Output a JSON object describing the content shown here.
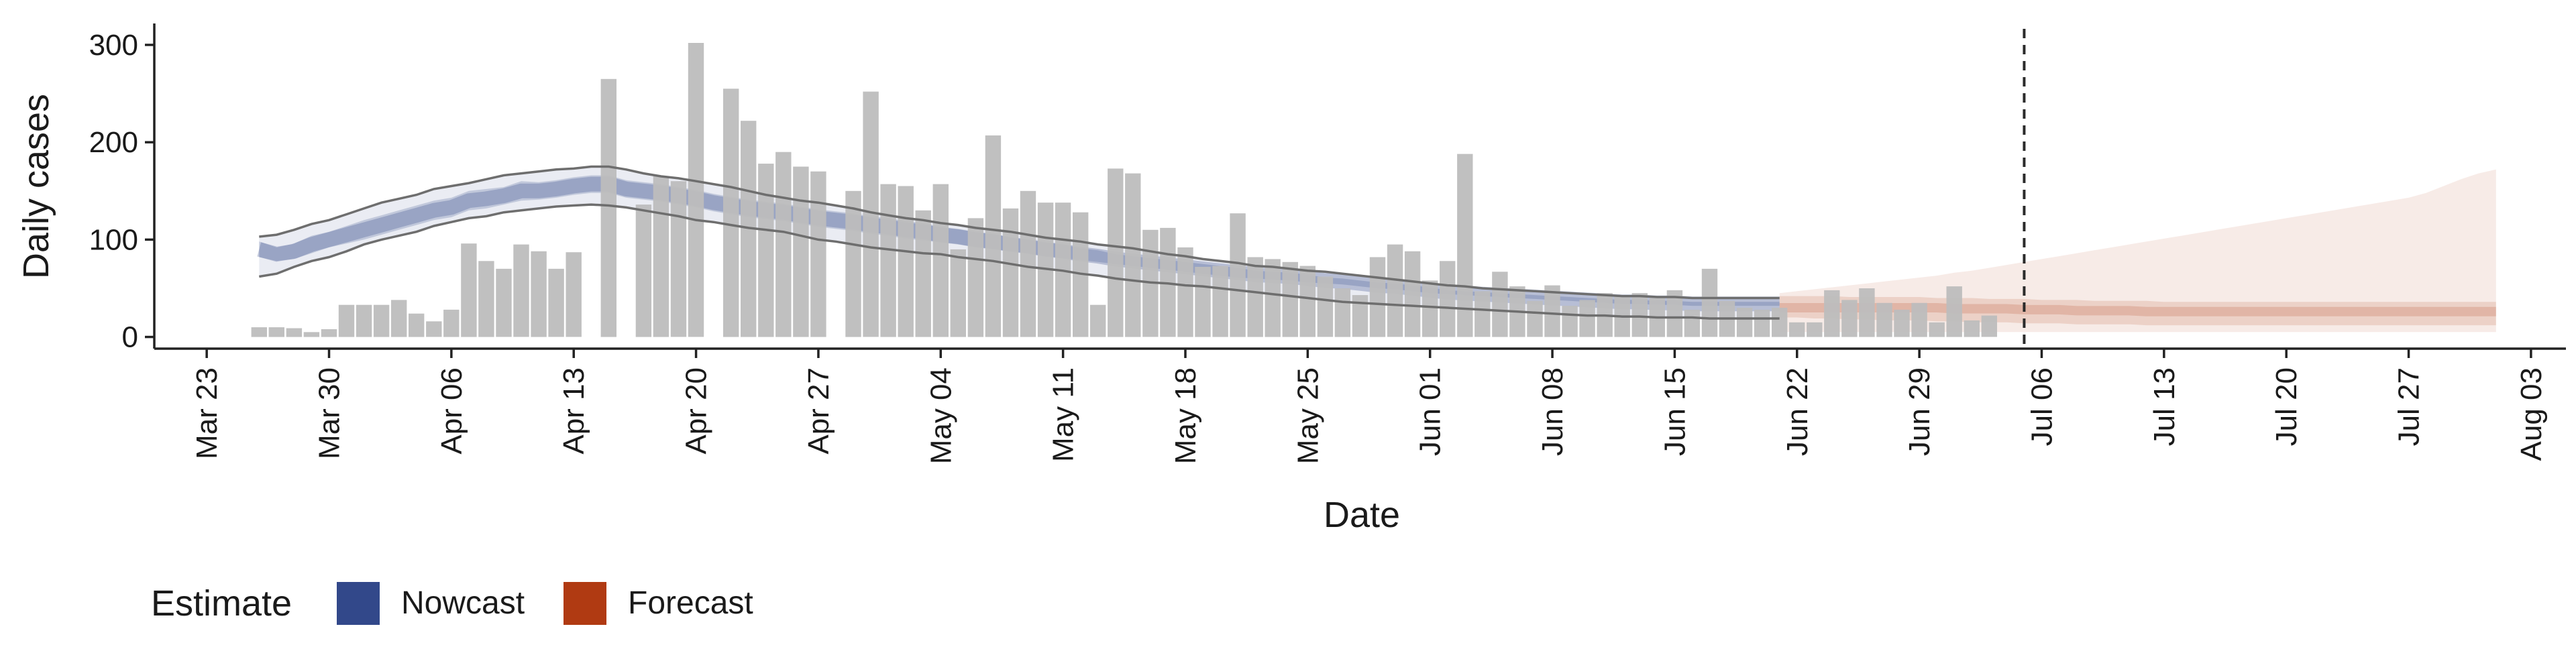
{
  "chart_data": {
    "type": "bar",
    "xlabel": "Date",
    "ylabel": "Daily cases",
    "year": 2020,
    "xlim": [
      "2020-03-20",
      "2020-08-05"
    ],
    "ylim": [
      -12,
      322
    ],
    "yticks": [
      0,
      100,
      200,
      300
    ],
    "xticks": [
      {
        "date": "2020-03-23",
        "label": "Mar 23"
      },
      {
        "date": "2020-03-30",
        "label": "Mar 30"
      },
      {
        "date": "2020-04-06",
        "label": "Apr 06"
      },
      {
        "date": "2020-04-13",
        "label": "Apr 13"
      },
      {
        "date": "2020-04-20",
        "label": "Apr 20"
      },
      {
        "date": "2020-04-27",
        "label": "Apr 27"
      },
      {
        "date": "2020-05-04",
        "label": "May 04"
      },
      {
        "date": "2020-05-11",
        "label": "May 11"
      },
      {
        "date": "2020-05-18",
        "label": "May 18"
      },
      {
        "date": "2020-05-25",
        "label": "May 25"
      },
      {
        "date": "2020-06-01",
        "label": "Jun 01"
      },
      {
        "date": "2020-06-08",
        "label": "Jun 08"
      },
      {
        "date": "2020-06-15",
        "label": "Jun 15"
      },
      {
        "date": "2020-06-22",
        "label": "Jun 22"
      },
      {
        "date": "2020-06-29",
        "label": "Jun 29"
      },
      {
        "date": "2020-07-06",
        "label": "Jul 06"
      },
      {
        "date": "2020-07-13",
        "label": "Jul 13"
      },
      {
        "date": "2020-07-20",
        "label": "Jul 20"
      },
      {
        "date": "2020-07-27",
        "label": "Jul 27"
      },
      {
        "date": "2020-08-03",
        "label": "Aug 03"
      }
    ],
    "vline_date": "2020-07-05",
    "cases": {
      "start_date": "2020-03-26",
      "values": [
        10,
        10,
        9,
        5,
        8,
        33,
        33,
        33,
        38,
        24,
        16,
        28,
        96,
        78,
        70,
        95,
        88,
        70,
        87,
        0,
        265,
        0,
        136,
        165,
        160,
        302,
        0,
        255,
        222,
        178,
        190,
        175,
        170,
        0,
        150,
        252,
        157,
        155,
        130,
        157,
        90,
        122,
        207,
        132,
        150,
        138,
        138,
        128,
        33,
        173,
        168,
        110,
        112,
        92,
        72,
        73,
        127,
        82,
        80,
        77,
        73,
        62,
        50,
        43,
        82,
        95,
        88,
        58,
        78,
        188,
        47,
        67,
        52,
        37,
        53,
        32,
        38,
        45,
        42,
        45,
        40,
        48,
        28,
        70,
        37,
        30,
        28,
        30,
        15,
        15,
        48,
        38,
        50,
        35,
        28,
        35,
        15,
        52,
        17,
        22
      ]
    },
    "nowcast": {
      "start_date": "2020-03-26",
      "median": [
        90,
        85,
        88,
        95,
        100,
        105,
        110,
        115,
        120,
        125,
        130,
        133,
        140,
        142,
        145,
        150,
        150,
        152,
        155,
        157,
        157,
        152,
        150,
        148,
        145,
        142,
        138,
        135,
        132,
        130,
        128,
        125,
        122,
        120,
        118,
        115,
        113,
        110,
        108,
        105,
        103,
        100,
        98,
        95,
        93,
        90,
        88,
        85,
        83,
        80,
        78,
        76,
        74,
        72,
        70,
        68,
        66,
        64,
        63,
        62,
        60,
        58,
        57,
        55,
        53,
        52,
        50,
        48,
        46,
        45,
        44,
        43,
        42,
        41,
        40,
        39,
        38,
        37,
        36,
        36,
        35,
        35,
        34,
        34,
        34,
        34,
        34,
        34
      ],
      "inner": [
        [
          82,
          78,
          80,
          86,
          92,
          96,
          100,
          105,
          110,
          115,
          120,
          123,
          130,
          132,
          136,
          140,
          141,
          143,
          146,
          148,
          148,
          143,
          141,
          139,
          136,
          133,
          129,
          126,
          123,
          121,
          119,
          116,
          113,
          111,
          109,
          106,
          104,
          101,
          99,
          97,
          95,
          92,
          90,
          88,
          86,
          83,
          81,
          79,
          77,
          75,
          73,
          71,
          69,
          67,
          65,
          63,
          61,
          60,
          59,
          58,
          56,
          55,
          54,
          52,
          50,
          49,
          47,
          45,
          44,
          43,
          42,
          41,
          40,
          39,
          38,
          37,
          36,
          35,
          34,
          34,
          33,
          33,
          32,
          32,
          32,
          32,
          32,
          32
        ],
        [
          98,
          92,
          96,
          104,
          108,
          114,
          120,
          125,
          130,
          135,
          140,
          143,
          150,
          152,
          154,
          160,
          159,
          161,
          164,
          166,
          166,
          161,
          159,
          157,
          154,
          151,
          147,
          144,
          141,
          139,
          137,
          134,
          131,
          129,
          127,
          124,
          122,
          119,
          117,
          113,
          111,
          108,
          106,
          102,
          100,
          97,
          95,
          91,
          89,
          85,
          83,
          81,
          79,
          77,
          75,
          73,
          71,
          68,
          67,
          66,
          64,
          61,
          60,
          58,
          56,
          55,
          53,
          51,
          48,
          47,
          46,
          45,
          44,
          43,
          42,
          41,
          40,
          39,
          38,
          38,
          37,
          37,
          36,
          36,
          36,
          36,
          36,
          36
        ]
      ],
      "outer": [
        [
          62,
          65,
          72,
          78,
          82,
          88,
          95,
          100,
          104,
          108,
          114,
          118,
          122,
          124,
          128,
          130,
          132,
          134,
          135,
          136,
          135,
          133,
          130,
          127,
          124,
          120,
          118,
          115,
          112,
          110,
          108,
          104,
          100,
          98,
          95,
          92,
          90,
          88,
          86,
          85,
          82,
          80,
          78,
          75,
          72,
          70,
          68,
          65,
          63,
          60,
          58,
          56,
          55,
          53,
          52,
          50,
          48,
          46,
          44,
          42,
          40,
          38,
          36,
          35,
          34,
          33,
          32,
          31,
          30,
          29,
          28,
          27,
          26,
          25,
          24,
          23,
          22,
          22,
          21,
          21,
          20,
          20,
          20,
          19,
          19,
          19,
          19,
          19
        ],
        [
          103,
          105,
          110,
          116,
          120,
          126,
          132,
          138,
          142,
          146,
          152,
          155,
          158,
          162,
          166,
          168,
          170,
          172,
          173,
          175,
          175,
          172,
          168,
          165,
          163,
          160,
          157,
          154,
          150,
          146,
          143,
          140,
          138,
          135,
          132,
          128,
          125,
          122,
          120,
          117,
          115,
          112,
          110,
          108,
          105,
          102,
          100,
          98,
          95,
          93,
          91,
          88,
          85,
          83,
          80,
          78,
          76,
          73,
          72,
          70,
          68,
          67,
          65,
          63,
          61,
          59,
          57,
          55,
          53,
          52,
          50,
          49,
          48,
          47,
          46,
          45,
          44,
          43,
          42,
          42,
          41,
          41,
          40,
          40,
          40,
          40,
          40,
          40
        ]
      ]
    },
    "forecast": {
      "start_date": "2020-06-21",
      "median": [
        30,
        30,
        30,
        30,
        30,
        30,
        30,
        30,
        30,
        30,
        29,
        29,
        29,
        29,
        28,
        28,
        28,
        27,
        27,
        27,
        27,
        26,
        26,
        26,
        26,
        26,
        26,
        26,
        26,
        26,
        26,
        26,
        26,
        26,
        26,
        26,
        26,
        26,
        26,
        26,
        26,
        26
      ],
      "inner": [
        [
          20,
          20,
          19,
          19,
          18,
          18,
          17,
          17,
          17,
          16,
          16,
          15,
          15,
          15,
          14,
          14,
          14,
          13,
          13,
          13,
          13,
          12,
          12,
          12,
          12,
          12,
          12,
          12,
          12,
          12,
          12,
          12,
          12,
          12,
          12,
          12,
          12,
          12,
          12,
          12,
          12,
          12
        ],
        [
          42,
          42,
          42,
          42,
          41,
          41,
          41,
          41,
          41,
          40,
          40,
          40,
          39,
          39,
          39,
          38,
          38,
          38,
          37,
          37,
          37,
          37,
          36,
          36,
          36,
          36,
          36,
          36,
          36,
          36,
          36,
          36,
          36,
          36,
          36,
          36,
          36,
          36,
          36,
          36,
          36,
          36
        ]
      ],
      "outer": [
        [
          5,
          5,
          5,
          5,
          5,
          5,
          5,
          5,
          5,
          5,
          5,
          5,
          5,
          5,
          5,
          5,
          5,
          5,
          5,
          5,
          5,
          5,
          5,
          5,
          5,
          5,
          5,
          5,
          5,
          5,
          5,
          5,
          5,
          5,
          5,
          5,
          5,
          5,
          5,
          5,
          5,
          5
        ],
        [
          45,
          47,
          49,
          51,
          53,
          55,
          57,
          59,
          61,
          63,
          66,
          68,
          71,
          74,
          77,
          80,
          83,
          86,
          89,
          92,
          95,
          98,
          101,
          104,
          107,
          110,
          113,
          116,
          119,
          122,
          125,
          128,
          131,
          134,
          137,
          140,
          143,
          148,
          155,
          162,
          168,
          172
        ]
      ]
    },
    "legend": {
      "title": "Estimate",
      "position": "bottom-left",
      "items": [
        {
          "label": "Nowcast",
          "color": "#32488a"
        },
        {
          "label": "Forecast",
          "color": "#b03a12"
        }
      ]
    },
    "colors": {
      "bars": "#bdbdbd",
      "nowcast": "#32488a",
      "forecast": "#b03a12",
      "outer_lines": "#6e6e6e",
      "vline": "#2b2b2b",
      "axis": "#222222"
    }
  }
}
